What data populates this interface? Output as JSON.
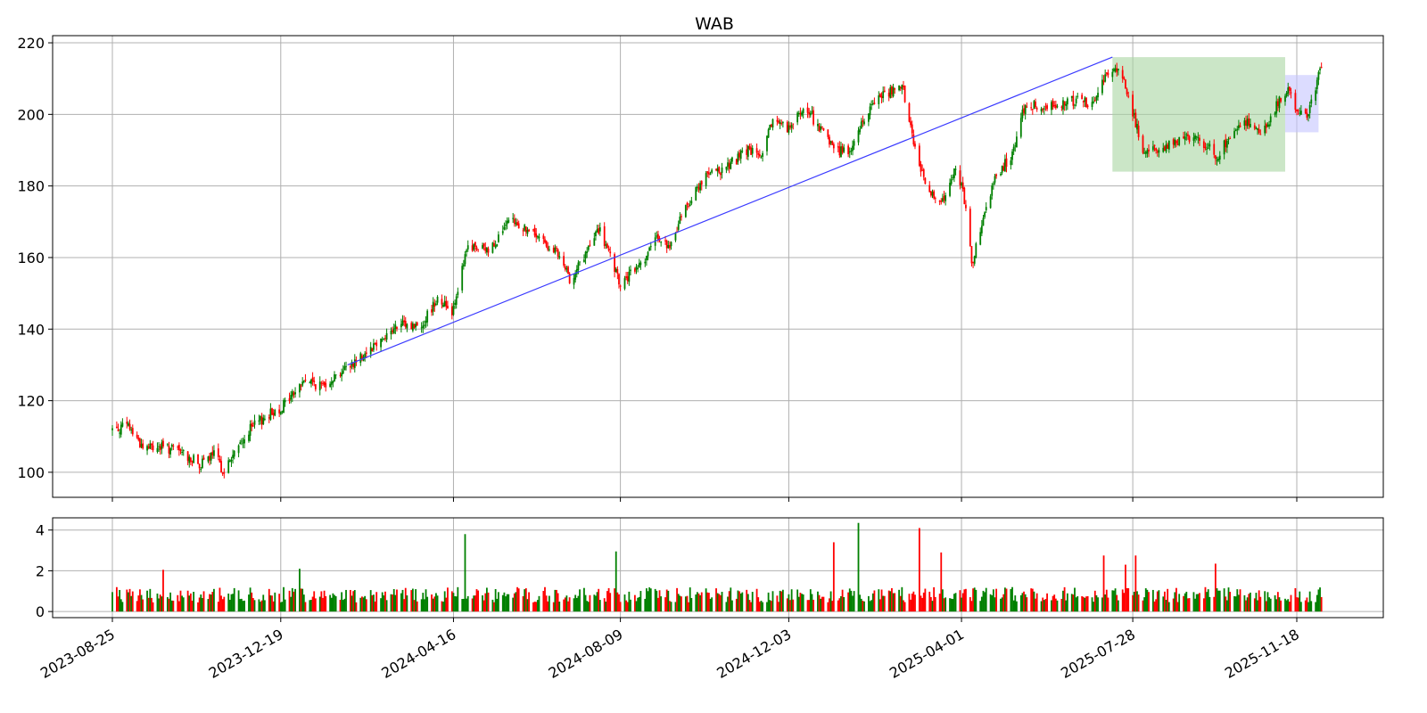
{
  "chart_data": {
    "type": "candlestick",
    "title": "WAB",
    "colors": {
      "up": "#008000",
      "down": "#ff0000",
      "trendline": "#3b3bff",
      "zone_green": "#a8d5a2",
      "zone_blue": "#c5c5ff"
    },
    "x_range": [
      "2023-08-25",
      "2025-12-08"
    ],
    "x_ticks": [
      "2023-08-25",
      "2023-12-19",
      "2024-04-16",
      "2024-08-09",
      "2024-12-03",
      "2025-04-01",
      "2025-07-28",
      "2025-11-18"
    ],
    "price_panel": {
      "ylim": [
        93,
        222
      ],
      "y_ticks": [
        100,
        120,
        140,
        160,
        180,
        200,
        220
      ],
      "grid": true
    },
    "volume_panel": {
      "ylim": [
        -0.3,
        4.6
      ],
      "y_ticks": [
        0,
        2,
        4
      ],
      "grid": true
    },
    "price_anchors": [
      [
        "2023-08-25",
        112
      ],
      [
        "2023-09-05",
        113
      ],
      [
        "2023-09-15",
        107
      ],
      [
        "2023-09-28",
        107
      ],
      [
        "2023-10-10",
        106
      ],
      [
        "2023-10-25",
        102
      ],
      [
        "2023-11-03",
        105
      ],
      [
        "2023-11-10",
        100
      ],
      [
        "2023-11-15",
        104
      ],
      [
        "2023-11-28",
        112
      ],
      [
        "2023-12-10",
        116
      ],
      [
        "2023-12-19",
        118
      ],
      [
        "2024-01-05",
        126
      ],
      [
        "2024-01-15",
        124
      ],
      [
        "2024-02-05",
        130
      ],
      [
        "2024-02-25",
        137
      ],
      [
        "2024-03-10",
        141
      ],
      [
        "2024-03-25",
        141
      ],
      [
        "2024-04-05",
        149
      ],
      [
        "2024-04-15",
        145
      ],
      [
        "2024-04-26",
        163
      ],
      [
        "2024-05-10",
        162
      ],
      [
        "2024-05-25",
        170
      ],
      [
        "2024-06-05",
        168
      ],
      [
        "2024-06-25",
        162
      ],
      [
        "2024-07-05",
        154
      ],
      [
        "2024-07-15",
        160
      ],
      [
        "2024-07-25",
        168
      ],
      [
        "2024-08-01",
        161
      ],
      [
        "2024-08-09",
        152
      ],
      [
        "2024-08-22",
        158
      ],
      [
        "2024-09-05",
        166
      ],
      [
        "2024-09-12",
        162
      ],
      [
        "2024-09-20",
        172
      ],
      [
        "2024-10-05",
        182
      ],
      [
        "2024-10-20",
        185
      ],
      [
        "2024-11-05",
        190
      ],
      [
        "2024-11-15",
        188
      ],
      [
        "2024-11-22",
        199
      ],
      [
        "2024-12-03",
        196
      ],
      [
        "2024-12-15",
        202
      ],
      [
        "2024-12-24",
        196
      ],
      [
        "2025-01-05",
        190
      ],
      [
        "2025-01-15",
        190
      ],
      [
        "2025-01-25",
        200
      ],
      [
        "2025-02-05",
        206
      ],
      [
        "2025-02-20",
        207
      ],
      [
        "2025-02-28",
        190
      ],
      [
        "2025-03-10",
        178
      ],
      [
        "2025-03-20",
        176
      ],
      [
        "2025-03-28",
        186
      ],
      [
        "2025-04-05",
        173
      ],
      [
        "2025-04-08",
        158
      ],
      [
        "2025-04-16",
        170
      ],
      [
        "2025-04-25",
        183
      ],
      [
        "2025-05-05",
        188
      ],
      [
        "2025-05-15",
        203
      ],
      [
        "2025-05-30",
        202
      ],
      [
        "2025-06-15",
        204
      ],
      [
        "2025-06-30",
        203
      ],
      [
        "2025-07-12",
        213
      ],
      [
        "2025-07-20",
        212
      ],
      [
        "2025-07-25",
        205
      ],
      [
        "2025-08-05",
        189
      ],
      [
        "2025-08-25",
        192
      ],
      [
        "2025-09-10",
        194
      ],
      [
        "2025-09-25",
        188
      ],
      [
        "2025-10-05",
        196
      ],
      [
        "2025-10-15",
        198
      ],
      [
        "2025-10-25",
        195
      ],
      [
        "2025-11-05",
        203
      ],
      [
        "2025-11-12",
        208
      ],
      [
        "2025-11-18",
        200
      ],
      [
        "2025-11-25",
        200
      ],
      [
        "2025-12-01",
        208
      ],
      [
        "2025-12-06",
        214
      ]
    ],
    "volume_spikes": [
      [
        "2023-10-01",
        2.05
      ],
      [
        "2024-01-03",
        2.1
      ],
      [
        "2024-04-26",
        3.8
      ],
      [
        "2024-08-08",
        2.95
      ],
      [
        "2025-01-05",
        3.4
      ],
      [
        "2025-01-20",
        4.35
      ],
      [
        "2025-03-05",
        4.1
      ],
      [
        "2025-03-20",
        2.9
      ],
      [
        "2025-07-10",
        2.75
      ],
      [
        "2025-07-25",
        2.3
      ],
      [
        "2025-08-01",
        2.75
      ],
      [
        "2025-09-25",
        2.35
      ]
    ],
    "trendline": {
      "from": [
        "2024-02-03",
        130
      ],
      "to": [
        "2025-07-14",
        216
      ]
    },
    "zones": [
      {
        "x0": "2025-07-14",
        "x1": "2025-11-10",
        "y0": 184,
        "y1": 216,
        "color": "zone_green"
      },
      {
        "x0": "2025-11-10",
        "x1": "2025-12-03",
        "y0": 195,
        "y1": 211,
        "color": "zone_blue"
      }
    ]
  }
}
